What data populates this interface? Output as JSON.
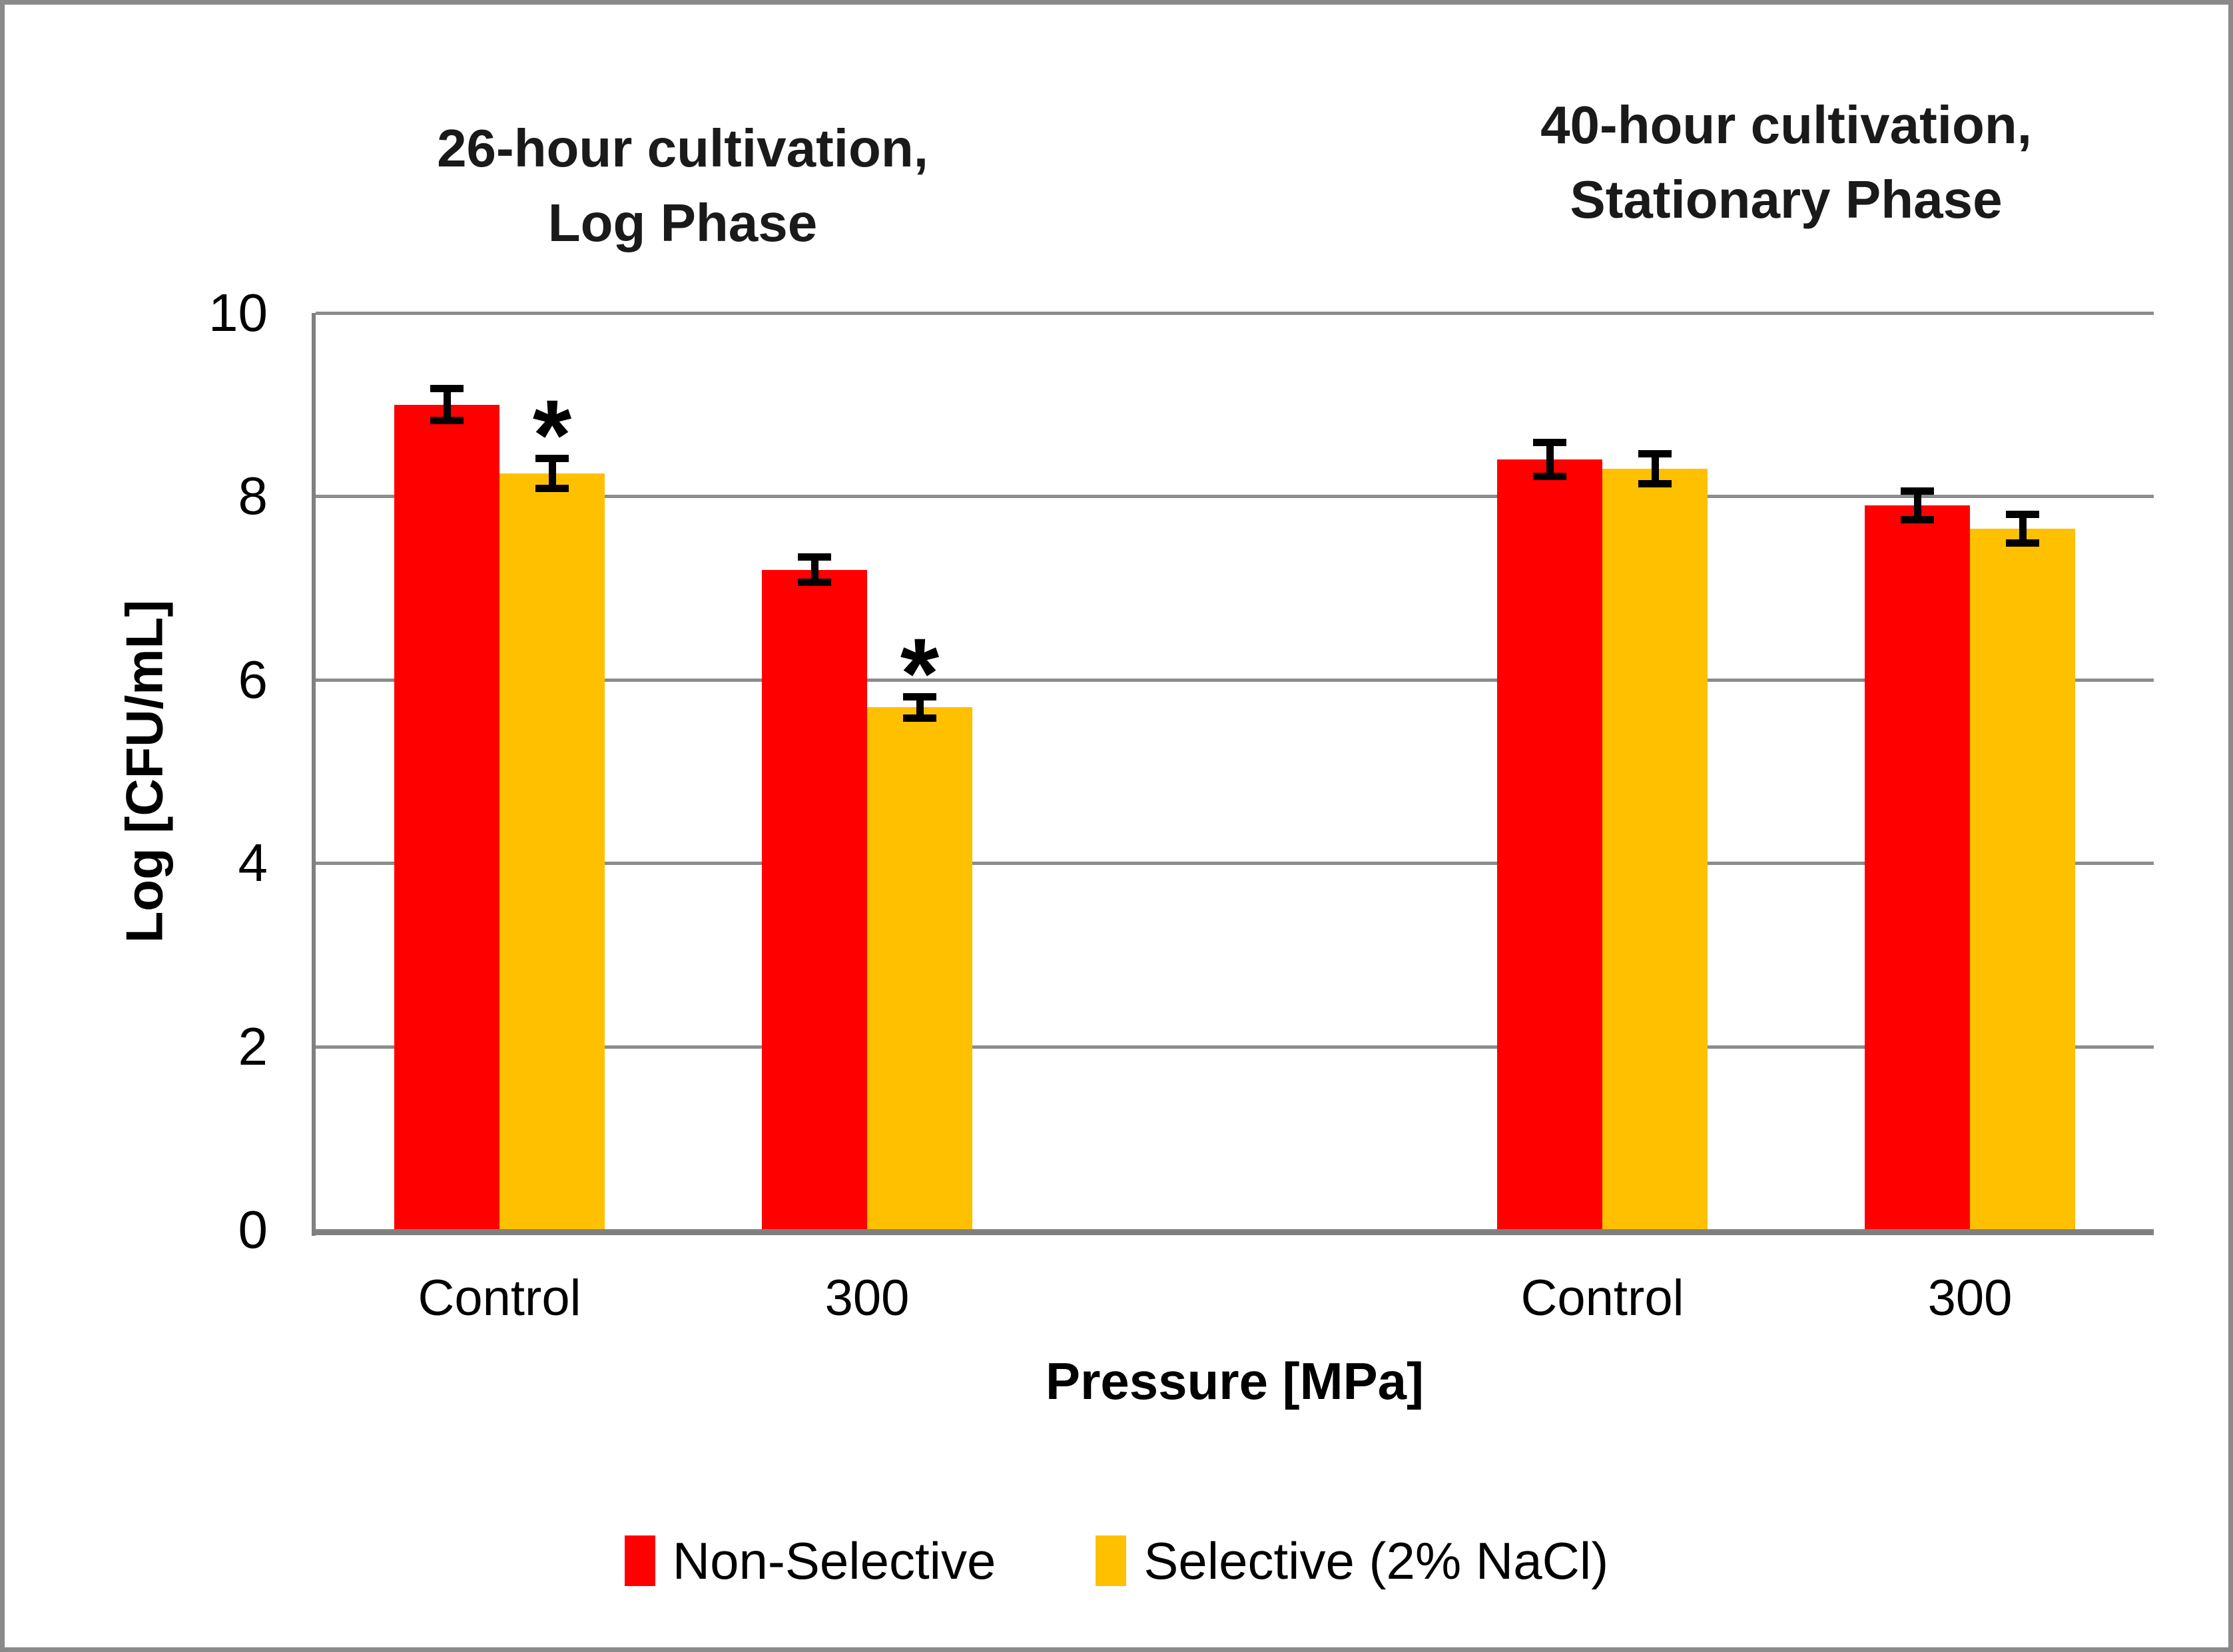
{
  "chart_data": {
    "type": "bar",
    "ylabel": "Log [CFU/mL]",
    "xlabel": "Pressure [MPa]",
    "ylim": [
      0,
      10
    ],
    "yticks": [
      0,
      2,
      4,
      6,
      8,
      10
    ],
    "grid": true,
    "legend_position": "bottom-center",
    "series": [
      {
        "name": "Non-Selective",
        "color": "#FF0000"
      },
      {
        "name": "Selective (2% NaCl)",
        "color": "#FFC000"
      }
    ],
    "panels": [
      {
        "title_lines": [
          "26-hour cultivation,",
          "Log Phase"
        ],
        "groups": [
          {
            "label": "Control",
            "values": [
              9.0,
              8.25
            ],
            "errors": [
              0.18,
              0.17
            ],
            "annotations": [
              "",
              "*"
            ]
          },
          {
            "label": "300",
            "values": [
              7.2,
              5.7
            ],
            "errors": [
              0.14,
              0.12
            ],
            "annotations": [
              "",
              "*"
            ]
          }
        ]
      },
      {
        "title_lines": [
          "40-hour cultivation,",
          "Stationary Phase"
        ],
        "groups": [
          {
            "label": "Control",
            "values": [
              8.4,
              8.3
            ],
            "errors": [
              0.19,
              0.17
            ],
            "annotations": [
              "",
              ""
            ]
          },
          {
            "label": "300",
            "values": [
              7.9,
              7.65
            ],
            "errors": [
              0.16,
              0.16
            ],
            "annotations": [
              "",
              ""
            ]
          }
        ]
      }
    ],
    "colors": {
      "grid": "#8C8C8C",
      "axis": "#808080",
      "frame_border": "#8A8A8A",
      "annotation": "#000000"
    }
  }
}
